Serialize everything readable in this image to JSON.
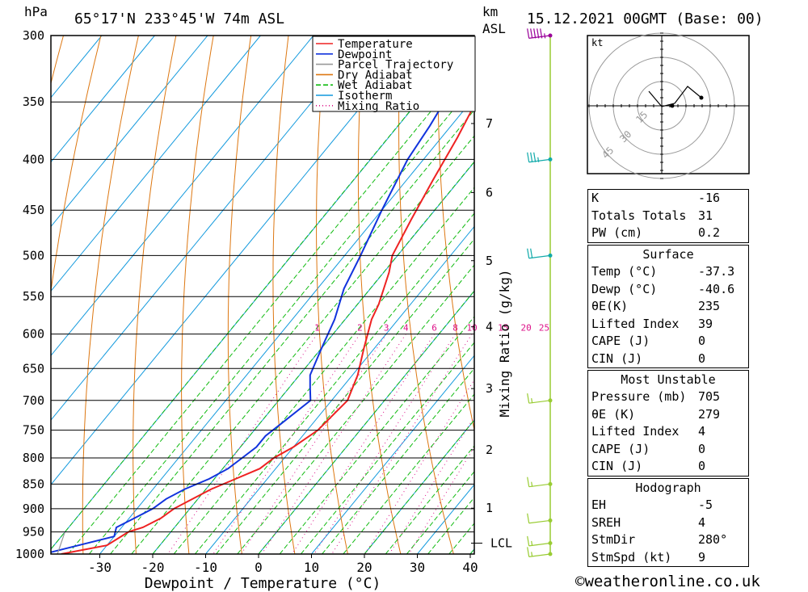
{
  "header": {
    "hpa_unit": "hPa",
    "location": "65°17'N  233°45'W  74m  ASL",
    "km_unit": "km",
    "asl_unit": "ASL",
    "datetime": "15.12.2021  00GMT  (Base: 00)"
  },
  "chart_data": {
    "type": "line",
    "title": "65°17'N  233°45'W  74m  ASL",
    "xlabel": "Dewpoint / Temperature (°C)",
    "ylabel": "hPa",
    "xlim": [
      -40,
      40
    ],
    "x_ticks": [
      -30,
      -20,
      -10,
      0,
      10,
      20,
      30,
      40
    ],
    "pressure_levels": [
      300,
      350,
      400,
      450,
      500,
      550,
      600,
      650,
      700,
      750,
      800,
      850,
      900,
      950,
      1000
    ],
    "height_axis": {
      "label": "Mixing Ratio (g/kg)",
      "ticks": [
        "1",
        "2",
        "3",
        "4",
        "5",
        "6",
        "7"
      ],
      "pressures": [
        899,
        785,
        681,
        590,
        506,
        432,
        368
      ]
    },
    "lcl": {
      "label": "LCL",
      "pressure": 975
    },
    "mixing_ratio_labels": [
      "1",
      "2",
      "3",
      "4",
      "6",
      "8",
      "10",
      "15",
      "20",
      "25"
    ],
    "mixing_ratio_values": [
      1,
      2,
      3,
      4,
      6,
      8,
      10,
      15,
      20,
      25
    ],
    "legend": [
      "Temperature",
      "Dewpoint",
      "Parcel Trajectory",
      "Dry Adiabat",
      "Wet Adiabat",
      "Isotherm",
      "Mixing Ratio"
    ],
    "colors": {
      "temperature": "#ee2222",
      "dewpoint": "#1133dd",
      "parcel": "#999999",
      "dry_adiabat": "#dd7711",
      "wet_adiabat": "#11bb11",
      "isotherm": "#1199dd",
      "mixing_ratio": "#dd1188",
      "wind": "#99cc33",
      "wind_upper": "#990099",
      "wind_mid": "#11aaaa"
    },
    "series": [
      {
        "name": "Temperature",
        "points": [
          [
            1000,
            -37.3
          ],
          [
            980,
            -30
          ],
          [
            950,
            -28
          ],
          [
            940,
            -26
          ],
          [
            920,
            -24
          ],
          [
            900,
            -23
          ],
          [
            880,
            -21
          ],
          [
            860,
            -19
          ],
          [
            840,
            -16
          ],
          [
            820,
            -13
          ],
          [
            800,
            -12
          ],
          [
            780,
            -10
          ],
          [
            750,
            -8
          ],
          [
            700,
            -7
          ],
          [
            660,
            -9
          ],
          [
            620,
            -12
          ],
          [
            580,
            -15
          ],
          [
            560,
            -16
          ],
          [
            520,
            -19
          ],
          [
            500,
            -21
          ],
          [
            460,
            -23
          ],
          [
            420,
            -25
          ],
          [
            380,
            -27
          ],
          [
            350,
            -29
          ],
          [
            320,
            -31
          ],
          [
            300,
            -31
          ]
        ]
      },
      {
        "name": "Dewpoint",
        "points": [
          [
            1000,
            -40.6
          ],
          [
            960,
            -30
          ],
          [
            940,
            -31
          ],
          [
            920,
            -29
          ],
          [
            900,
            -27
          ],
          [
            880,
            -26
          ],
          [
            860,
            -24
          ],
          [
            840,
            -21
          ],
          [
            820,
            -19
          ],
          [
            800,
            -18
          ],
          [
            780,
            -17
          ],
          [
            760,
            -17
          ],
          [
            740,
            -16
          ],
          [
            700,
            -14
          ],
          [
            680,
            -16
          ],
          [
            660,
            -18
          ],
          [
            620,
            -20
          ],
          [
            580,
            -22
          ],
          [
            540,
            -25
          ],
          [
            500,
            -27
          ],
          [
            450,
            -30
          ],
          [
            400,
            -33
          ],
          [
            370,
            -34
          ],
          [
            350,
            -35
          ],
          [
            300,
            -36
          ]
        ]
      },
      {
        "name": "Parcel Trajectory",
        "points": [
          [
            1000,
            -38
          ],
          [
            975,
            -39
          ],
          [
            950,
            -40
          ]
        ]
      }
    ],
    "wind_barbs": [
      {
        "pressure": 300,
        "speed_kt": 45
      },
      {
        "pressure": 400,
        "speed_kt": 25
      },
      {
        "pressure": 500,
        "speed_kt": 20
      },
      {
        "pressure": 700,
        "speed_kt": 5
      },
      {
        "pressure": 850,
        "speed_kt": 5
      },
      {
        "pressure": 925,
        "speed_kt": 10
      },
      {
        "pressure": 975,
        "speed_kt": 5
      },
      {
        "pressure": 1000,
        "speed_kt": 5
      }
    ]
  },
  "hodograph": {
    "unit": "kt",
    "ring_labels": [
      "15",
      "30",
      "45"
    ]
  },
  "indices": [
    {
      "label": "K",
      "value": "-16"
    },
    {
      "label": "Totals Totals",
      "value": "31"
    },
    {
      "label": "PW (cm)",
      "value": "0.2"
    }
  ],
  "surface": {
    "title": "Surface",
    "rows": [
      {
        "label": "Temp (°C)",
        "value": "-37.3"
      },
      {
        "label": "Dewp (°C)",
        "value": "-40.6"
      },
      {
        "label": "θE(K)",
        "value": "235"
      },
      {
        "label": "Lifted Index",
        "value": "39"
      },
      {
        "label": "CAPE (J)",
        "value": "0"
      },
      {
        "label": "CIN (J)",
        "value": "0"
      }
    ]
  },
  "most_unstable": {
    "title": "Most Unstable",
    "rows": [
      {
        "label": "Pressure (mb)",
        "value": "705"
      },
      {
        "label": "θE (K)",
        "value": "279"
      },
      {
        "label": "Lifted Index",
        "value": "4"
      },
      {
        "label": "CAPE (J)",
        "value": "0"
      },
      {
        "label": "CIN (J)",
        "value": "0"
      }
    ]
  },
  "hodograph_table": {
    "title": "Hodograph",
    "rows": [
      {
        "label": "EH",
        "value": "-5"
      },
      {
        "label": "SREH",
        "value": "4"
      },
      {
        "label": "StmDir",
        "value": "280°"
      },
      {
        "label": "StmSpd (kt)",
        "value": "9"
      }
    ]
  },
  "footer": {
    "copyright": "©weatheronline.co.uk"
  }
}
